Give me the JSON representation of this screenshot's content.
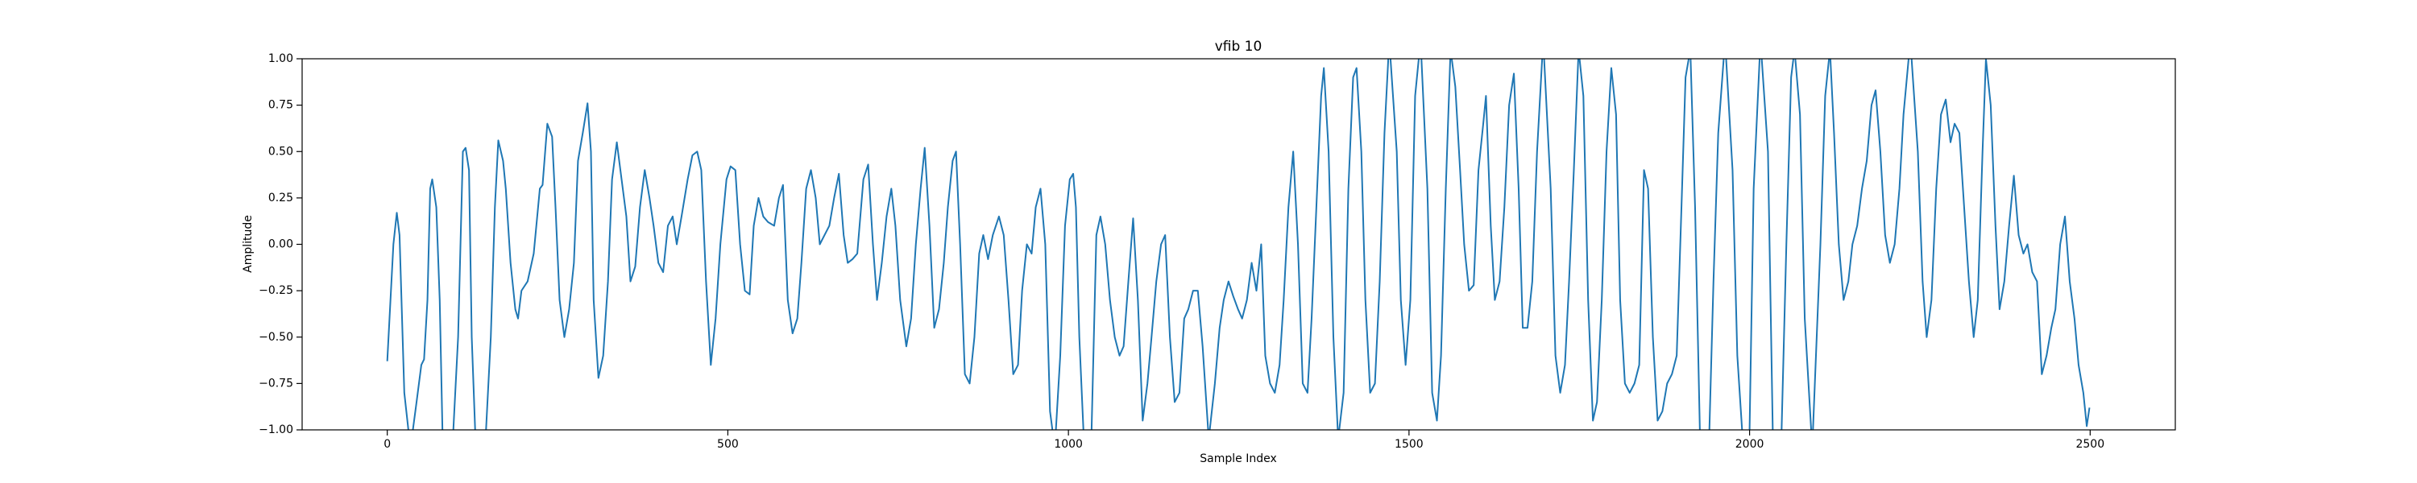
{
  "chart_data": {
    "type": "line",
    "title": "vfib 10",
    "x_label": "Sample Index",
    "y_label": "Amplitude",
    "color": "#1f77b4",
    "x": [
      0,
      9,
      14,
      18,
      25,
      34,
      43,
      50,
      54,
      59,
      63,
      66,
      72,
      77,
      81,
      89,
      97,
      104,
      111,
      115,
      120,
      124,
      129,
      137,
      145,
      152,
      158,
      163,
      170,
      174,
      181,
      188,
      192,
      197,
      206,
      215,
      224,
      228,
      235,
      242,
      247,
      253,
      260,
      267,
      274,
      280,
      287,
      294,
      299,
      303,
      310,
      317,
      324,
      330,
      337,
      344,
      351,
      357,
      364,
      371,
      378,
      385,
      391,
      398,
      405,
      412,
      419,
      425,
      432,
      441,
      448,
      455,
      461,
      468,
      475,
      482,
      489,
      498,
      504,
      511,
      518,
      525,
      532,
      538,
      545,
      552,
      559,
      568,
      575,
      581,
      588,
      595,
      602,
      608,
      615,
      622,
      629,
      635,
      642,
      649,
      656,
      663,
      670,
      676,
      683,
      690,
      699,
      706,
      713,
      719,
      726,
      733,
      740,
      746,
      753,
      762,
      769,
      776,
      783,
      789,
      796,
      803,
      810,
      817,
      823,
      830,
      835,
      841,
      848,
      855,
      862,
      869,
      875,
      882,
      889,
      898,
      905,
      912,
      919,
      926,
      932,
      939,
      946,
      952,
      959,
      966,
      973,
      980,
      988,
      995,
      1002,
      1007,
      1011,
      1016,
      1022,
      1028,
      1034,
      1041,
      1047,
      1054,
      1061,
      1068,
      1075,
      1081,
      1088,
      1095,
      1102,
      1109,
      1116,
      1122,
      1129,
      1136,
      1142,
      1149,
      1156,
      1163,
      1170,
      1176,
      1183,
      1190,
      1197,
      1206,
      1215,
      1222,
      1228,
      1235,
      1242,
      1249,
      1255,
      1262,
      1269,
      1276,
      1283,
      1289,
      1296,
      1303,
      1310,
      1316,
      1323,
      1330,
      1337,
      1344,
      1351,
      1357,
      1364,
      1371,
      1375,
      1382,
      1389,
      1396,
      1404,
      1411,
      1418,
      1423,
      1430,
      1436,
      1443,
      1450,
      1457,
      1464,
      1471,
      1482,
      1488,
      1495,
      1502,
      1509,
      1517,
      1527,
      1534,
      1541,
      1547,
      1554,
      1561,
      1568,
      1575,
      1581,
      1588,
      1595,
      1602,
      1609,
      1613,
      1620,
      1626,
      1633,
      1640,
      1647,
      1654,
      1661,
      1667,
      1674,
      1681,
      1688,
      1697,
      1708,
      1715,
      1722,
      1729,
      1735,
      1742,
      1749,
      1756,
      1763,
      1770,
      1776,
      1783,
      1790,
      1797,
      1804,
      1810,
      1817,
      1824,
      1831,
      1838,
      1845,
      1851,
      1858,
      1865,
      1872,
      1879,
      1886,
      1893,
      1900,
      1906,
      1913,
      1920,
      1927,
      1934,
      1941,
      1947,
      1954,
      1964,
      1975,
      1982,
      1989,
      1995,
      2000,
      2006,
      2016,
      2027,
      2034,
      2040,
      2047,
      2054,
      2061,
      2066,
      2074,
      2081,
      2092,
      2104,
      2111,
      2118,
      2124,
      2131,
      2138,
      2145,
      2151,
      2158,
      2165,
      2172,
      2179,
      2185,
      2192,
      2199,
      2206,
      2213,
      2220,
      2226,
      2236,
      2247,
      2254,
      2260,
      2267,
      2274,
      2281,
      2288,
      2295,
      2301,
      2308,
      2315,
      2322,
      2329,
      2335,
      2342,
      2347,
      2354,
      2361,
      2367,
      2374,
      2381,
      2388,
      2395,
      2402,
      2408,
      2415,
      2422,
      2429,
      2436,
      2443,
      2449,
      2456,
      2463,
      2470,
      2477,
      2483,
      2490,
      2495,
      2499
    ],
    "values": [
      -0.63,
      0.0,
      0.17,
      0.05,
      -0.8,
      -1.1,
      -0.85,
      -0.65,
      -0.62,
      -0.3,
      0.3,
      0.35,
      0.2,
      -0.3,
      -1.0,
      -1.1,
      -1.0,
      -0.5,
      0.5,
      0.52,
      0.4,
      -0.5,
      -1.0,
      -1.1,
      -1.0,
      -0.5,
      0.2,
      0.56,
      0.45,
      0.3,
      -0.1,
      -0.35,
      -0.4,
      -0.25,
      -0.2,
      -0.05,
      0.3,
      0.32,
      0.65,
      0.58,
      0.2,
      -0.3,
      -0.5,
      -0.35,
      -0.1,
      0.45,
      0.6,
      0.76,
      0.5,
      -0.3,
      -0.72,
      -0.6,
      -0.2,
      0.35,
      0.55,
      0.35,
      0.15,
      -0.2,
      -0.12,
      0.2,
      0.4,
      0.25,
      0.1,
      -0.1,
      -0.15,
      0.1,
      0.15,
      0.0,
      0.15,
      0.35,
      0.48,
      0.5,
      0.4,
      -0.2,
      -0.65,
      -0.4,
      0.0,
      0.35,
      0.42,
      0.4,
      0.0,
      -0.25,
      -0.27,
      0.1,
      0.25,
      0.15,
      0.12,
      0.1,
      0.25,
      0.32,
      -0.3,
      -0.48,
      -0.4,
      -0.1,
      0.3,
      0.4,
      0.25,
      0.0,
      0.05,
      0.1,
      0.25,
      0.38,
      0.05,
      -0.1,
      -0.08,
      -0.05,
      0.35,
      0.43,
      0.0,
      -0.3,
      -0.1,
      0.15,
      0.3,
      0.1,
      -0.3,
      -0.55,
      -0.4,
      0.0,
      0.3,
      0.52,
      0.1,
      -0.45,
      -0.35,
      -0.1,
      0.2,
      0.45,
      0.5,
      0.0,
      -0.7,
      -0.75,
      -0.5,
      -0.05,
      0.05,
      -0.08,
      0.05,
      0.15,
      0.05,
      -0.3,
      -0.7,
      -0.65,
      -0.25,
      0.0,
      -0.05,
      0.2,
      0.3,
      0.0,
      -0.9,
      -1.1,
      -0.6,
      0.1,
      0.35,
      0.38,
      0.2,
      -0.5,
      -1.0,
      -1.1,
      -1.0,
      0.05,
      0.15,
      0.0,
      -0.3,
      -0.5,
      -0.6,
      -0.55,
      -0.2,
      0.14,
      -0.3,
      -0.95,
      -0.75,
      -0.5,
      -0.2,
      0.0,
      0.05,
      -0.5,
      -0.85,
      -0.8,
      -0.4,
      -0.35,
      -0.25,
      -0.25,
      -0.55,
      -1.05,
      -0.75,
      -0.45,
      -0.3,
      -0.2,
      -0.28,
      -0.35,
      -0.4,
      -0.3,
      -0.1,
      -0.25,
      0.0,
      -0.6,
      -0.75,
      -0.8,
      -0.65,
      -0.3,
      0.2,
      0.5,
      0.0,
      -0.75,
      -0.8,
      -0.4,
      0.2,
      0.8,
      0.95,
      0.5,
      -0.5,
      -1.05,
      -0.8,
      0.3,
      0.9,
      0.95,
      0.5,
      -0.3,
      -0.8,
      -0.75,
      -0.2,
      0.6,
      1.1,
      0.5,
      -0.3,
      -0.65,
      -0.3,
      0.8,
      1.1,
      0.3,
      -0.8,
      -0.95,
      -0.6,
      0.3,
      1.05,
      0.85,
      0.4,
      0.0,
      -0.25,
      -0.22,
      0.4,
      0.65,
      0.8,
      0.1,
      -0.3,
      -0.2,
      0.2,
      0.75,
      0.92,
      0.3,
      -0.45,
      -0.45,
      -0.2,
      0.5,
      1.1,
      0.3,
      -0.6,
      -0.8,
      -0.65,
      -0.2,
      0.4,
      1.05,
      0.8,
      -0.3,
      -0.95,
      -0.85,
      -0.3,
      0.5,
      0.95,
      0.7,
      -0.3,
      -0.75,
      -0.8,
      -0.75,
      -0.65,
      0.4,
      0.3,
      -0.5,
      -0.95,
      -0.9,
      -0.75,
      -0.7,
      -0.6,
      0.2,
      0.9,
      1.05,
      0.2,
      -1.0,
      -1.1,
      -1.0,
      -0.2,
      0.6,
      1.1,
      0.4,
      -0.6,
      -1.0,
      -1.1,
      -1.0,
      0.3,
      1.1,
      0.5,
      -1.0,
      -1.1,
      -1.0,
      0.0,
      0.9,
      1.05,
      0.7,
      -0.4,
      -1.1,
      0.0,
      0.8,
      1.05,
      0.6,
      0.0,
      -0.3,
      -0.2,
      0.0,
      0.1,
      0.3,
      0.45,
      0.75,
      0.83,
      0.5,
      0.05,
      -0.1,
      0.0,
      0.3,
      0.7,
      1.1,
      0.5,
      -0.2,
      -0.5,
      -0.3,
      0.3,
      0.7,
      0.78,
      0.55,
      0.65,
      0.6,
      0.2,
      -0.2,
      -0.5,
      -0.3,
      0.5,
      1.0,
      0.75,
      0.1,
      -0.35,
      -0.2,
      0.1,
      0.37,
      0.05,
      -0.05,
      0.0,
      -0.15,
      -0.2,
      -0.7,
      -0.6,
      -0.45,
      -0.35,
      0.0,
      0.15,
      -0.2,
      -0.4,
      -0.65,
      -0.8,
      -0.98,
      -0.88
    ],
    "xlim": [
      -125,
      2625
    ],
    "ylim": [
      -1,
      1
    ],
    "xticks": [
      0,
      500,
      1000,
      1500,
      2000,
      2500
    ],
    "yticks": [
      {
        "value": -1,
        "label": "−1.00"
      },
      {
        "value": -0.75,
        "label": "−0.75"
      },
      {
        "value": -0.5,
        "label": "−0.50"
      },
      {
        "value": -0.25,
        "label": "−0.25"
      },
      {
        "value": 0,
        "label": "0.00"
      },
      {
        "value": 0.25,
        "label": "0.25"
      },
      {
        "value": 0.5,
        "label": "0.50"
      },
      {
        "value": 0.75,
        "label": "0.75"
      },
      {
        "value": 1,
        "label": "1.00"
      }
    ]
  }
}
